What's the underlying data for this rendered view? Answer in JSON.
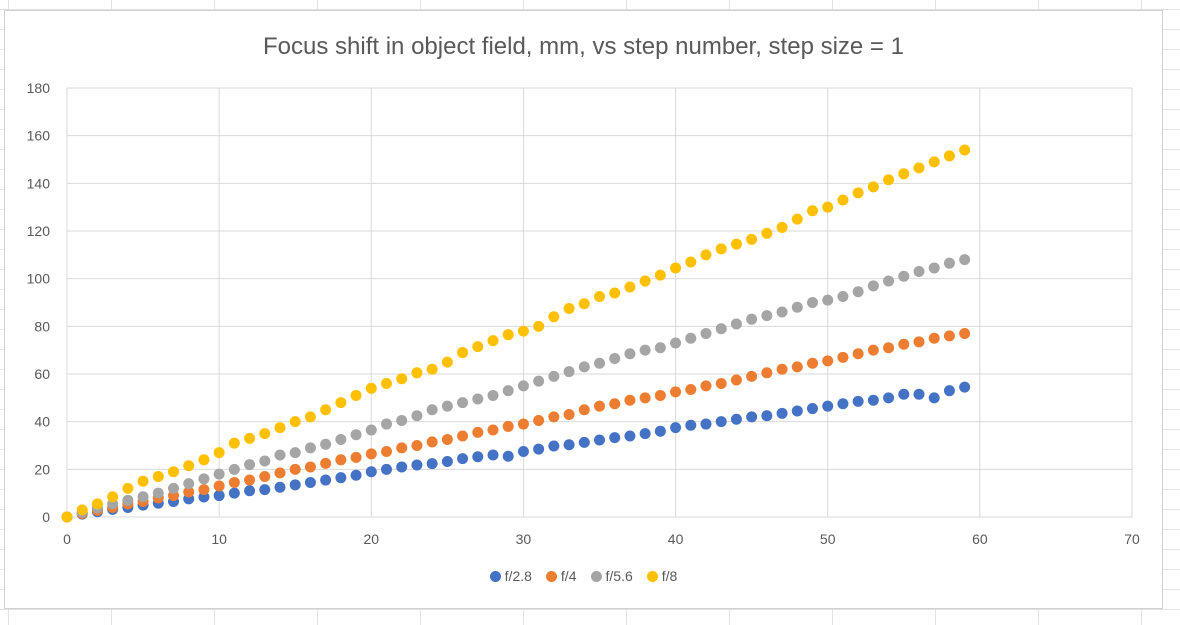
{
  "chart_data": {
    "type": "scatter",
    "title": "Focus shift in object field, mm, vs step number, step size = 1",
    "xlabel": "",
    "ylabel": "",
    "xlim": [
      0,
      70
    ],
    "ylim": [
      0,
      180
    ],
    "xticks": [
      "0",
      "10",
      "20",
      "30",
      "40",
      "50",
      "60",
      "70"
    ],
    "yticks": [
      "0",
      "20",
      "40",
      "60",
      "80",
      "100",
      "120",
      "140",
      "160",
      "180"
    ],
    "grid": true,
    "legend_position": "bottom",
    "series": [
      {
        "name": "f/2.8",
        "color": "#4472C4",
        "points": [
          [
            0,
            0
          ],
          [
            1,
            1.2
          ],
          [
            2,
            2.2
          ],
          [
            3,
            3.2
          ],
          [
            4,
            4
          ],
          [
            5,
            5
          ],
          [
            6,
            5.8
          ],
          [
            7,
            6.5
          ],
          [
            8,
            7.6
          ],
          [
            9,
            8.4
          ],
          [
            10,
            9
          ],
          [
            11,
            10
          ],
          [
            12,
            11
          ],
          [
            13,
            11.5
          ],
          [
            14,
            12.5
          ],
          [
            15,
            13.5
          ],
          [
            16,
            14.5
          ],
          [
            17,
            15.5
          ],
          [
            18,
            16.5
          ],
          [
            19,
            17.5
          ],
          [
            20,
            19
          ],
          [
            21,
            20
          ],
          [
            22,
            21
          ],
          [
            23,
            21.8
          ],
          [
            24,
            22.4
          ],
          [
            25,
            23.3
          ],
          [
            26,
            24.5
          ],
          [
            27,
            25.3
          ],
          [
            28,
            26
          ],
          [
            29,
            25.5
          ],
          [
            30,
            27.5
          ],
          [
            31,
            28.5
          ],
          [
            32,
            29.8
          ],
          [
            33,
            30.3
          ],
          [
            34,
            31.3
          ],
          [
            35,
            32.3
          ],
          [
            36,
            33.3
          ],
          [
            37,
            34
          ],
          [
            38,
            35
          ],
          [
            39,
            36
          ],
          [
            40,
            37.5
          ],
          [
            41,
            38.5
          ],
          [
            42,
            39
          ],
          [
            43,
            40
          ],
          [
            44,
            41
          ],
          [
            45,
            42
          ],
          [
            46,
            42.5
          ],
          [
            47,
            43.5
          ],
          [
            48,
            44.5
          ],
          [
            49,
            45.5
          ],
          [
            50,
            46.5
          ],
          [
            51,
            47.5
          ],
          [
            52,
            48.5
          ],
          [
            53,
            49
          ],
          [
            54,
            50
          ],
          [
            55,
            51.5
          ],
          [
            56,
            51.5
          ],
          [
            57,
            50
          ],
          [
            58,
            53
          ],
          [
            59,
            54.5
          ]
        ]
      },
      {
        "name": "f/4",
        "color": "#ED7D31",
        "points": [
          [
            0,
            0
          ],
          [
            1,
            1.5
          ],
          [
            2,
            2.8
          ],
          [
            3,
            4
          ],
          [
            4,
            5.5
          ],
          [
            5,
            6.5
          ],
          [
            6,
            8
          ],
          [
            7,
            9
          ],
          [
            8,
            10.5
          ],
          [
            9,
            11.5
          ],
          [
            10,
            13
          ],
          [
            11,
            14.5
          ],
          [
            12,
            15.5
          ],
          [
            13,
            17
          ],
          [
            14,
            18.5
          ],
          [
            15,
            20
          ],
          [
            16,
            21
          ],
          [
            17,
            22.5
          ],
          [
            18,
            24
          ],
          [
            19,
            25
          ],
          [
            20,
            26.5
          ],
          [
            21,
            27.5
          ],
          [
            22,
            29
          ],
          [
            23,
            30
          ],
          [
            24,
            31.5
          ],
          [
            25,
            32.5
          ],
          [
            26,
            34
          ],
          [
            27,
            35.5
          ],
          [
            28,
            36.5
          ],
          [
            29,
            38
          ],
          [
            30,
            39
          ],
          [
            31,
            40.5
          ],
          [
            32,
            42
          ],
          [
            33,
            43
          ],
          [
            34,
            45
          ],
          [
            35,
            46.5
          ],
          [
            36,
            47.5
          ],
          [
            37,
            49
          ],
          [
            38,
            50
          ],
          [
            39,
            51
          ],
          [
            40,
            52.5
          ],
          [
            41,
            53.5
          ],
          [
            42,
            55
          ],
          [
            43,
            56
          ],
          [
            44,
            57.5
          ],
          [
            45,
            59
          ],
          [
            46,
            60.5
          ],
          [
            47,
            62
          ],
          [
            48,
            63
          ],
          [
            49,
            64.5
          ],
          [
            50,
            65.5
          ],
          [
            51,
            67
          ],
          [
            52,
            68.5
          ],
          [
            53,
            70
          ],
          [
            54,
            71
          ],
          [
            55,
            72.5
          ],
          [
            56,
            73.5
          ],
          [
            57,
            75
          ],
          [
            58,
            76
          ],
          [
            59,
            77
          ]
        ]
      },
      {
        "name": "f/5.6",
        "color": "#A5A5A5",
        "points": [
          [
            0,
            0
          ],
          [
            1,
            2
          ],
          [
            2,
            3.8
          ],
          [
            3,
            5.5
          ],
          [
            4,
            7
          ],
          [
            5,
            8.5
          ],
          [
            6,
            10
          ],
          [
            7,
            12
          ],
          [
            8,
            14
          ],
          [
            9,
            16
          ],
          [
            10,
            18
          ],
          [
            11,
            20
          ],
          [
            12,
            22
          ],
          [
            13,
            23.5
          ],
          [
            14,
            26
          ],
          [
            15,
            27
          ],
          [
            16,
            29
          ],
          [
            17,
            30.5
          ],
          [
            18,
            32.5
          ],
          [
            19,
            34.5
          ],
          [
            20,
            36.5
          ],
          [
            21,
            39
          ],
          [
            22,
            40.5
          ],
          [
            23,
            42.5
          ],
          [
            24,
            45
          ],
          [
            25,
            46.5
          ],
          [
            26,
            48
          ],
          [
            27,
            49.5
          ],
          [
            28,
            51
          ],
          [
            29,
            53
          ],
          [
            30,
            55
          ],
          [
            31,
            57
          ],
          [
            32,
            59
          ],
          [
            33,
            61
          ],
          [
            34,
            63
          ],
          [
            35,
            64.5
          ],
          [
            36,
            66.5
          ],
          [
            37,
            68.5
          ],
          [
            38,
            70
          ],
          [
            39,
            71
          ],
          [
            40,
            73
          ],
          [
            41,
            75
          ],
          [
            42,
            77
          ],
          [
            43,
            79
          ],
          [
            44,
            81
          ],
          [
            45,
            83
          ],
          [
            46,
            84.5
          ],
          [
            47,
            86
          ],
          [
            48,
            88
          ],
          [
            49,
            90
          ],
          [
            50,
            91
          ],
          [
            51,
            92.5
          ],
          [
            52,
            94.5
          ],
          [
            53,
            97
          ],
          [
            54,
            99
          ],
          [
            55,
            101
          ],
          [
            56,
            103
          ],
          [
            57,
            104.5
          ],
          [
            58,
            106.5
          ],
          [
            59,
            108
          ]
        ]
      },
      {
        "name": "f/8",
        "color": "#FFC000",
        "points": [
          [
            0,
            0
          ],
          [
            1,
            3
          ],
          [
            2,
            5.5
          ],
          [
            3,
            8.5
          ],
          [
            4,
            12
          ],
          [
            5,
            15
          ],
          [
            6,
            17
          ],
          [
            7,
            19
          ],
          [
            8,
            21.5
          ],
          [
            9,
            24
          ],
          [
            10,
            27
          ],
          [
            11,
            31
          ],
          [
            12,
            33
          ],
          [
            13,
            35
          ],
          [
            14,
            37.5
          ],
          [
            15,
            40
          ],
          [
            16,
            42
          ],
          [
            17,
            45
          ],
          [
            18,
            48
          ],
          [
            19,
            51
          ],
          [
            20,
            54
          ],
          [
            21,
            56
          ],
          [
            22,
            58
          ],
          [
            23,
            60.5
          ],
          [
            24,
            62
          ],
          [
            25,
            65
          ],
          [
            26,
            69
          ],
          [
            27,
            71.5
          ],
          [
            28,
            74
          ],
          [
            29,
            76.5
          ],
          [
            30,
            78
          ],
          [
            31,
            80
          ],
          [
            32,
            84
          ],
          [
            33,
            87.5
          ],
          [
            34,
            89.5
          ],
          [
            35,
            92.5
          ],
          [
            36,
            94
          ],
          [
            37,
            96.5
          ],
          [
            38,
            99
          ],
          [
            39,
            101.5
          ],
          [
            40,
            104.5
          ],
          [
            41,
            107
          ],
          [
            42,
            110
          ],
          [
            43,
            112.5
          ],
          [
            44,
            114.5
          ],
          [
            45,
            116.5
          ],
          [
            46,
            119
          ],
          [
            47,
            121.5
          ],
          [
            48,
            125
          ],
          [
            49,
            128.5
          ],
          [
            50,
            130
          ],
          [
            51,
            133
          ],
          [
            52,
            136
          ],
          [
            53,
            138.5
          ],
          [
            54,
            141.5
          ],
          [
            55,
            144
          ],
          [
            56,
            146.5
          ],
          [
            57,
            149
          ],
          [
            58,
            151.5
          ],
          [
            59,
            154
          ]
        ]
      }
    ]
  }
}
